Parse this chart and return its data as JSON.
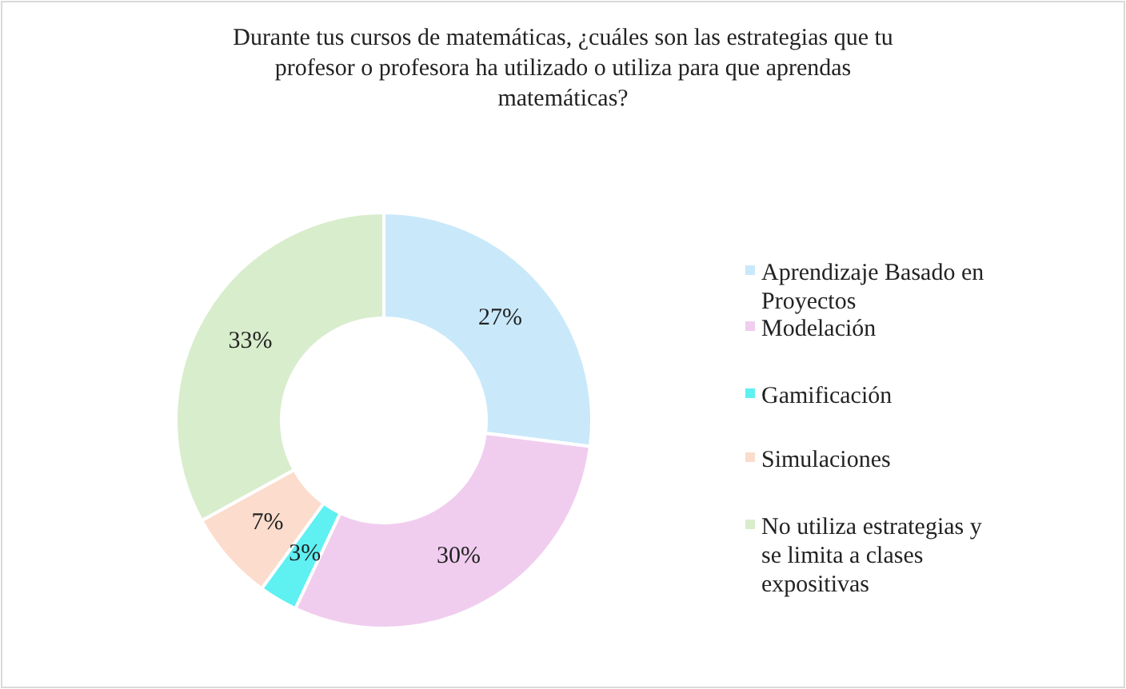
{
  "chart_data": {
    "type": "donut",
    "title": "Durante tus cursos de matemáticas, ¿cuáles son las estrategias que tu profesor o profesora ha utilizado o utiliza para que aprendas matemáticas?",
    "categories": [
      "Aprendizaje Basado en Proyectos",
      "Modelación",
      "Gamificación",
      "Simulaciones",
      "No utiliza estrategias y se limita a clases expositivas"
    ],
    "values": [
      27,
      30,
      3,
      7,
      33
    ],
    "colors": [
      "#c9e9fa",
      "#f0cdee",
      "#5ff0f2",
      "#fbdccd",
      "#d8edcc"
    ],
    "value_labels": [
      "27%",
      "30%",
      "3%",
      "7%",
      "33%"
    ],
    "legend": "right"
  }
}
